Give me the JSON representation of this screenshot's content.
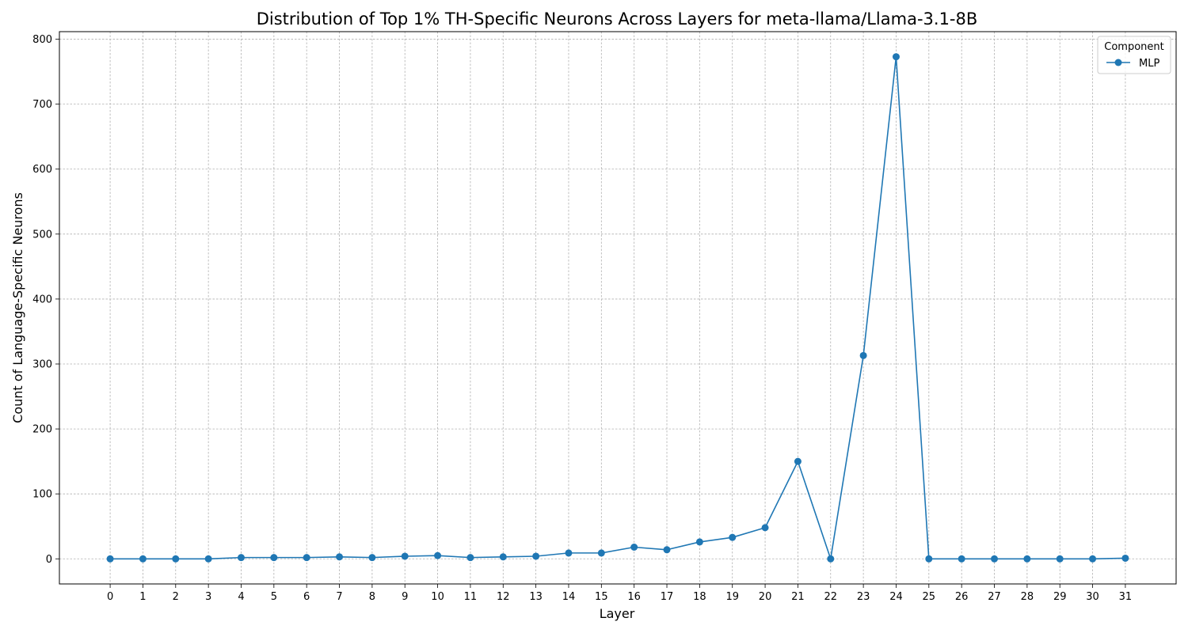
{
  "chart_data": {
    "type": "line",
    "title": "Distribution of Top 1% TH-Specific Neurons Across Layers for meta-llama/Llama-3.1-8B",
    "xlabel": "Layer",
    "ylabel": "Count of Language-Specific Neurons",
    "x": [
      0,
      1,
      2,
      3,
      4,
      5,
      6,
      7,
      8,
      9,
      10,
      11,
      12,
      13,
      14,
      15,
      16,
      17,
      18,
      19,
      20,
      21,
      22,
      23,
      24,
      25,
      26,
      27,
      28,
      29,
      30,
      31
    ],
    "series": [
      {
        "name": "MLP",
        "color": "#1f77b4",
        "marker": "circle",
        "values": [
          0,
          0,
          0,
          0,
          2,
          2,
          2,
          3,
          2,
          4,
          5,
          2,
          3,
          4,
          9,
          9,
          18,
          14,
          26,
          33,
          48,
          150,
          0,
          313,
          773,
          0,
          0,
          0,
          0,
          0,
          0,
          1
        ]
      }
    ],
    "xlim": [
      -1.55,
      32.55
    ],
    "ylim": [
      -38.65,
      811.65
    ],
    "yticks": [
      0,
      100,
      200,
      300,
      400,
      500,
      600,
      700,
      800
    ],
    "xticks": [
      0,
      1,
      2,
      3,
      4,
      5,
      6,
      7,
      8,
      9,
      10,
      11,
      12,
      13,
      14,
      15,
      16,
      17,
      18,
      19,
      20,
      21,
      22,
      23,
      24,
      25,
      26,
      27,
      28,
      29,
      30,
      31
    ],
    "grid": true,
    "legend": {
      "title": "Component",
      "position": "top-right"
    }
  }
}
